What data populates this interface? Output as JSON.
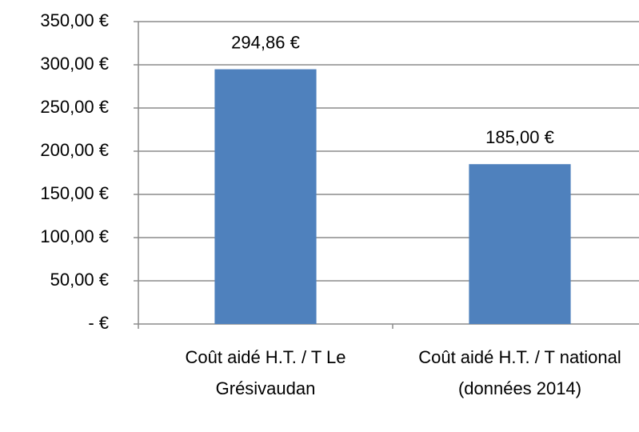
{
  "chart_data": {
    "type": "bar",
    "categories": [
      "Coût aidé H.T. / T Le Grésivaudan",
      "Coût aidé H.T. / T national (données 2014)"
    ],
    "values": [
      294.86,
      185
    ],
    "value_labels": [
      "294,86 €",
      "185,00 €"
    ],
    "color": "#4f81bd",
    "ylim": [
      0,
      350
    ],
    "yticks": [
      {
        "value": 0,
        "label": "-  €"
      },
      {
        "value": 50,
        "label": "50,00 €"
      },
      {
        "value": 100,
        "label": "100,00 €"
      },
      {
        "value": 150,
        "label": "150,00 €"
      },
      {
        "value": 200,
        "label": "200,00 €"
      },
      {
        "value": 250,
        "label": "250,00 €"
      },
      {
        "value": 300,
        "label": "300,00 €"
      },
      {
        "value": 350,
        "label": "350,00 €"
      }
    ],
    "grid": true
  }
}
